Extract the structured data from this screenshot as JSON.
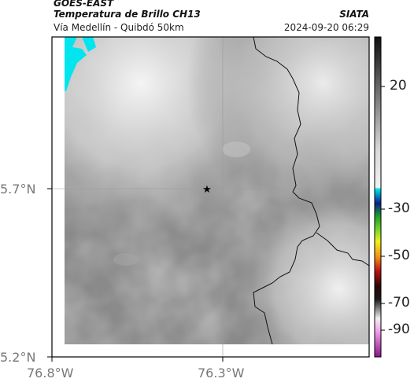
{
  "header": {
    "satellite": "GOES-EAST",
    "title": "Temperatura de Brillo CH13",
    "subtitle": "Vía Medellín - Quibdó 50km",
    "brand": "SIATA",
    "timestamp": "2024-09-20 06:29"
  },
  "axes": {
    "y_ticks": [
      "5.7°N",
      "5.2°N"
    ],
    "x_ticks": [
      "76.8°W",
      "76.3°W"
    ]
  },
  "colorbar": {
    "ticks": [
      "20",
      "-30",
      "-50",
      "-70",
      "-90"
    ]
  },
  "colors": {
    "frame": "#000000",
    "background_field": "#8a8a8a",
    "cold_cyan": "#00e5ee"
  }
}
